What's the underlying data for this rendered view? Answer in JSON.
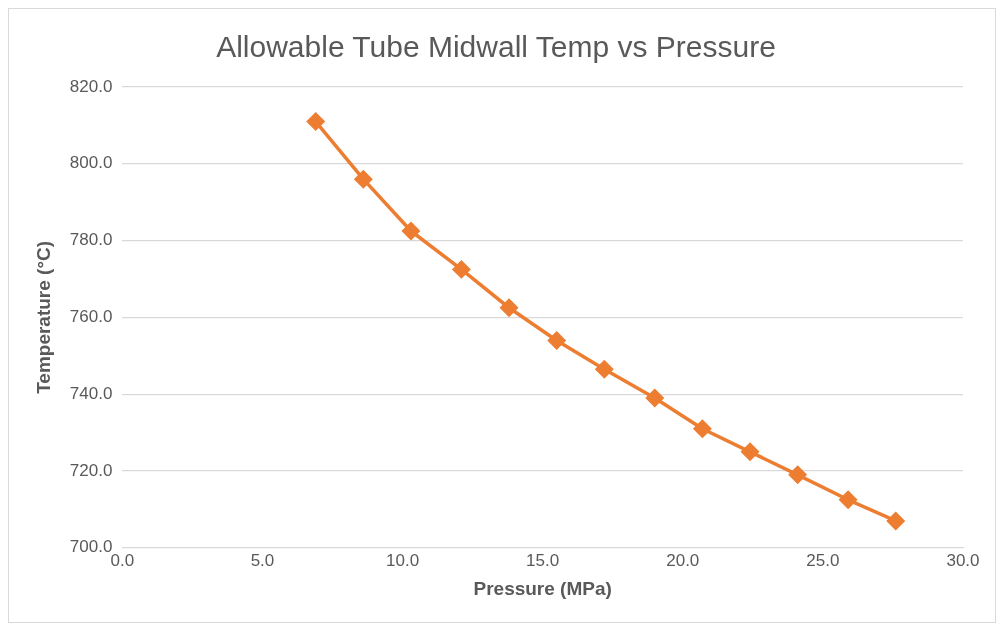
{
  "chart_data": {
    "type": "line",
    "title": "Allowable Tube Midwall Temp vs Pressure",
    "xlabel": "Pressure (MPa)",
    "ylabel": "Temperature (°C)",
    "x": [
      6.9,
      8.6,
      10.3,
      12.1,
      13.8,
      15.5,
      17.2,
      19.0,
      20.7,
      22.4,
      24.1,
      25.9,
      27.6
    ],
    "series": [
      {
        "color": "#ed7d31",
        "values": [
          811,
          796,
          782.5,
          772.5,
          762.5,
          754,
          746.5,
          739,
          731,
          725,
          719,
          712.5,
          707
        ]
      }
    ],
    "xlim": [
      0,
      30
    ],
    "xticks": [
      {
        "value": 0,
        "label": "0.0"
      },
      {
        "value": 5,
        "label": "5.0"
      },
      {
        "value": 10,
        "label": "10.0"
      },
      {
        "value": 15,
        "label": "15.0"
      },
      {
        "value": 20,
        "label": "20.0"
      },
      {
        "value": 25,
        "label": "25.0"
      },
      {
        "value": 30,
        "label": "30.0"
      }
    ],
    "ylim": [
      700,
      820
    ],
    "yticks": [
      {
        "value": 700,
        "label": "700.0"
      },
      {
        "value": 720,
        "label": "720.0"
      },
      {
        "value": 740,
        "label": "740.0"
      },
      {
        "value": 760,
        "label": "760.0"
      },
      {
        "value": 780,
        "label": "780.0"
      },
      {
        "value": 800,
        "label": "800.0"
      },
      {
        "value": 820,
        "label": "820.0"
      }
    ],
    "grid": "y",
    "legend": false,
    "marker": "diamond",
    "line_style": "solid"
  }
}
